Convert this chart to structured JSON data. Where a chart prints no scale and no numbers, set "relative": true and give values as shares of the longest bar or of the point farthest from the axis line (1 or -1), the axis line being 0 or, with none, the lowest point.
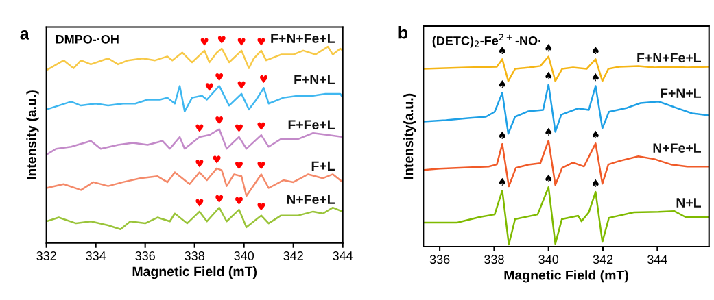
{
  "chart_data": [
    {
      "type": "line",
      "title": "DMPO-·OH",
      "xlabel": "Magnetic Field (mT)",
      "ylabel": "Intensity (a.u.)",
      "relative": true,
      "tick_labels": "x",
      "xlim": [
        332,
        344
      ],
      "xticks": [
        332,
        334,
        336,
        338,
        340,
        342,
        344
      ],
      "series": [
        {
          "name": "F+N+Fe+L",
          "color": "#f7c948",
          "x": [
            332.0,
            332.7,
            333.1,
            333.4,
            333.8,
            334.5,
            334.9,
            335.3,
            335.9,
            336.4,
            336.9,
            337.1,
            337.5,
            337.9,
            338.4,
            338.6,
            338.9,
            339.1,
            339.4,
            339.9,
            340.2,
            340.4,
            340.7,
            340.9,
            341.5,
            342.0,
            342.4,
            342.9,
            343.4,
            343.6,
            343.9,
            344.0
          ],
          "values": [
            0.88,
            0.93,
            0.89,
            0.93,
            0.91,
            0.94,
            0.91,
            0.93,
            0.94,
            0.93,
            0.95,
            0.93,
            0.97,
            0.92,
            0.98,
            0.92,
            0.97,
            0.99,
            0.92,
            0.98,
            0.89,
            0.94,
            0.98,
            0.93,
            0.96,
            0.96,
            0.98,
            0.96,
            1.0,
            0.96,
            0.99,
            0.98
          ]
        },
        {
          "name": "F+N+L",
          "color": "#3fb7f0",
          "x": [
            332.0,
            332.5,
            333.0,
            333.4,
            334.0,
            334.5,
            335.1,
            335.6,
            336.1,
            336.6,
            336.9,
            337.2,
            337.4,
            337.6,
            337.9,
            338.3,
            338.5,
            339.0,
            339.4,
            339.9,
            340.2,
            340.5,
            340.8,
            341.0,
            341.6,
            342.2,
            342.8,
            343.3,
            343.9,
            344.0
          ],
          "values": [
            0.68,
            0.7,
            0.72,
            0.7,
            0.71,
            0.7,
            0.71,
            0.71,
            0.73,
            0.73,
            0.74,
            0.71,
            0.8,
            0.67,
            0.74,
            0.75,
            0.73,
            0.8,
            0.7,
            0.76,
            0.68,
            0.73,
            0.79,
            0.71,
            0.74,
            0.75,
            0.75,
            0.76,
            0.76,
            0.74
          ]
        },
        {
          "name": "F+Fe+L",
          "color": "#c38ac9",
          "x": [
            332.0,
            332.4,
            333.0,
            333.8,
            334.2,
            334.9,
            335.5,
            336.1,
            336.7,
            337.0,
            337.4,
            337.6,
            338.2,
            338.6,
            339.0,
            339.3,
            339.8,
            340.1,
            340.7,
            341.0,
            341.5,
            342.2,
            342.8,
            343.4,
            344.0
          ],
          "values": [
            0.45,
            0.48,
            0.49,
            0.52,
            0.48,
            0.5,
            0.51,
            0.5,
            0.52,
            0.48,
            0.54,
            0.48,
            0.54,
            0.55,
            0.58,
            0.48,
            0.54,
            0.48,
            0.55,
            0.49,
            0.53,
            0.53,
            0.56,
            0.55,
            0.54
          ]
        },
        {
          "name": "F+L",
          "color": "#f48a6a",
          "x": [
            332.0,
            332.7,
            333.4,
            333.9,
            334.5,
            335.1,
            335.8,
            336.5,
            336.9,
            337.2,
            337.8,
            338.2,
            338.5,
            338.9,
            339.1,
            339.3,
            339.6,
            339.9,
            340.1,
            340.7,
            341.0,
            341.6,
            342.0,
            342.6,
            343.2,
            343.6,
            344.0
          ],
          "values": [
            0.28,
            0.3,
            0.27,
            0.31,
            0.29,
            0.31,
            0.33,
            0.34,
            0.31,
            0.36,
            0.3,
            0.36,
            0.32,
            0.38,
            0.37,
            0.29,
            0.35,
            0.34,
            0.24,
            0.35,
            0.28,
            0.32,
            0.31,
            0.35,
            0.33,
            0.35,
            0.31
          ]
        },
        {
          "name": "N+Fe+L",
          "color": "#9ac43a",
          "x": [
            332.0,
            332.5,
            333.2,
            333.8,
            334.5,
            335.0,
            335.4,
            336.0,
            336.5,
            337.0,
            337.2,
            337.7,
            338.2,
            338.5,
            339.0,
            339.3,
            339.8,
            340.1,
            340.7,
            341.0,
            341.5,
            342.2,
            342.8,
            343.2,
            343.6,
            344.0
          ],
          "values": [
            0.11,
            0.13,
            0.1,
            0.11,
            0.09,
            0.07,
            0.11,
            0.1,
            0.13,
            0.11,
            0.15,
            0.1,
            0.16,
            0.11,
            0.18,
            0.11,
            0.17,
            0.08,
            0.14,
            0.1,
            0.14,
            0.14,
            0.16,
            0.15,
            0.18,
            0.16
          ]
        }
      ],
      "annotations": [
        "a",
        {
          "text": "♥",
          "x": 338.4,
          "y": 0.98
        },
        {
          "text": "♥",
          "x": 339.1,
          "y": 0.99
        },
        {
          "text": "♥",
          "x": 339.9,
          "y": 0.98
        },
        {
          "text": "♥",
          "x": 340.7,
          "y": 0.98
        },
        {
          "text": "♥",
          "x": 338.6,
          "y": 0.75
        },
        {
          "text": "♥",
          "x": 339.0,
          "y": 0.8
        },
        {
          "text": "♥",
          "x": 339.9,
          "y": 0.76
        },
        {
          "text": "♥",
          "x": 340.8,
          "y": 0.79
        },
        {
          "text": "♥",
          "x": 338.2,
          "y": 0.54
        },
        {
          "text": "♥",
          "x": 339.0,
          "y": 0.58
        },
        {
          "text": "♥",
          "x": 339.8,
          "y": 0.54
        },
        {
          "text": "♥",
          "x": 340.7,
          "y": 0.55
        },
        {
          "text": "♥",
          "x": 338.2,
          "y": 0.36
        },
        {
          "text": "♥",
          "x": 338.9,
          "y": 0.38
        },
        {
          "text": "♥",
          "x": 339.8,
          "y": 0.35
        },
        {
          "text": "♥",
          "x": 340.7,
          "y": 0.35
        },
        {
          "text": "♥",
          "x": 338.2,
          "y": 0.16
        },
        {
          "text": "♥",
          "x": 339.0,
          "y": 0.18
        },
        {
          "text": "♥",
          "x": 339.8,
          "y": 0.17
        },
        {
          "text": "♥",
          "x": 340.7,
          "y": 0.14
        }
      ]
    },
    {
      "type": "line",
      "title": "(DETC)$_{2}$-Fe$^{2+}$-NO·",
      "xlabel": "Magnetic Field (mT)",
      "ylabel": "Intensity(a.u.)",
      "relative": true,
      "tick_labels": "x",
      "xlim": [
        335.4,
        345.9
      ],
      "xticks": [
        336,
        338,
        340,
        342,
        344
      ],
      "series": [
        {
          "name": "F+N+Fe+L",
          "color": "#f5b515",
          "x": [
            335.43,
            336.2,
            337.0,
            338.1,
            338.3,
            338.52,
            338.77,
            339.3,
            339.7,
            340.0,
            340.25,
            340.5,
            340.9,
            341.4,
            341.73,
            341.98,
            342.2,
            342.6,
            343.3,
            343.9,
            344.5,
            345.1,
            345.85
          ],
          "values": [
            0.935,
            0.939,
            0.942,
            0.946,
            0.986,
            0.871,
            0.935,
            0.942,
            0.95,
            1.0,
            0.871,
            0.935,
            0.942,
            0.935,
            0.986,
            0.871,
            0.935,
            0.946,
            0.95,
            0.942,
            0.946,
            0.942,
            0.946
          ]
        },
        {
          "name": "F+N+L",
          "color": "#1ea0e6",
          "x": [
            335.43,
            336.22,
            337.04,
            337.7,
            338.02,
            338.3,
            338.52,
            338.77,
            339.26,
            339.8,
            340.0,
            340.25,
            340.47,
            341.09,
            341.48,
            341.73,
            341.98,
            342.22,
            342.89,
            343.38,
            344.05,
            344.69,
            345.28,
            345.85
          ],
          "values": [
            0.658,
            0.665,
            0.676,
            0.683,
            0.709,
            0.809,
            0.594,
            0.683,
            0.712,
            0.719,
            0.853,
            0.604,
            0.694,
            0.727,
            0.719,
            0.845,
            0.622,
            0.709,
            0.73,
            0.755,
            0.763,
            0.73,
            0.701,
            0.691
          ]
        },
        {
          "name": "N+Fe+L",
          "color": "#f05a28",
          "x": [
            335.43,
            336.0,
            336.6,
            337.8,
            338.1,
            338.3,
            338.54,
            338.8,
            339.3,
            339.7,
            340.0,
            340.25,
            340.5,
            340.9,
            341.3,
            341.73,
            341.98,
            342.2,
            342.6,
            343.3,
            343.9,
            344.5,
            345.1,
            345.85
          ],
          "values": [
            0.403,
            0.41,
            0.414,
            0.421,
            0.432,
            0.54,
            0.317,
            0.414,
            0.432,
            0.439,
            0.558,
            0.324,
            0.414,
            0.442,
            0.421,
            0.543,
            0.331,
            0.432,
            0.45,
            0.475,
            0.46,
            0.432,
            0.421,
            0.421
          ]
        },
        {
          "name": "N+L",
          "color": "#7fba00",
          "x": [
            335.43,
            336.64,
            337.46,
            338.02,
            338.3,
            338.54,
            338.77,
            339.6,
            340.0,
            340.25,
            340.49,
            341.09,
            341.21,
            341.48,
            341.73,
            341.98,
            342.22,
            343.14,
            344.05,
            344.62,
            345.04,
            345.85
          ],
          "values": [
            0.126,
            0.126,
            0.155,
            0.169,
            0.295,
            0.011,
            0.144,
            0.169,
            0.313,
            0.014,
            0.144,
            0.162,
            0.133,
            0.18,
            0.288,
            0.025,
            0.151,
            0.18,
            0.183,
            0.187,
            0.155,
            0.155
          ]
        }
      ],
      "annotations": [
        "b",
        {
          "text": "♠",
          "x": 338.3,
          "y": 0.986
        },
        {
          "text": "♠",
          "x": 340.0,
          "y": 1.0
        },
        {
          "text": "♠",
          "x": 341.73,
          "y": 0.986
        },
        {
          "text": "♠",
          "x": 338.3,
          "y": 0.809
        },
        {
          "text": "♠",
          "x": 340.0,
          "y": 0.853
        },
        {
          "text": "♠",
          "x": 341.73,
          "y": 0.845
        },
        {
          "text": "♠",
          "x": 338.3,
          "y": 0.54
        },
        {
          "text": "♠",
          "x": 340.0,
          "y": 0.558
        },
        {
          "text": "♠",
          "x": 341.73,
          "y": 0.543
        },
        {
          "text": "♠",
          "x": 338.3,
          "y": 0.295
        },
        {
          "text": "♠",
          "x": 340.0,
          "y": 0.313
        },
        {
          "text": "♠",
          "x": 341.73,
          "y": 0.288
        }
      ]
    }
  ]
}
